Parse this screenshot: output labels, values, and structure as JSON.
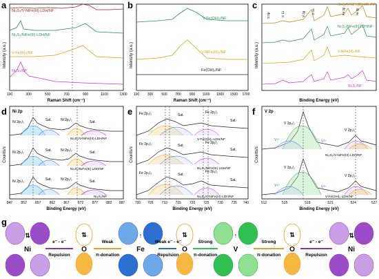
{
  "figure": {
    "panels": {
      "a": {
        "letter": "a",
        "xlabel": "Raman Shift (cm⁻¹)",
        "ylabel": "Intensity (a.u.)",
        "xticks": [
          "100",
          "300",
          "500",
          "700",
          "900",
          "1100",
          "1300"
        ],
        "labels": [
          "Ni₃S₂/V-NiFe(III) LDH/NF",
          "Ni₃S₂/NiFe(III) LDH/NF",
          "V-Fe(III)₂/NF",
          "Ni₃S₂/NF"
        ]
      },
      "b": {
        "letter": "b",
        "xlabel": "Raman Shift (cm⁻¹)",
        "ylabel": "Intensity (a.u.)",
        "xticks": [
          "100",
          "300",
          "500",
          "700",
          "900",
          "1100",
          "1300",
          "1500",
          "1700"
        ],
        "labels": [
          "V-Fe(OH)₂/NF",
          "V-NiFe(III)₂/NF",
          "Fe(OH)₂/NF"
        ]
      },
      "c": {
        "letter": "c",
        "xlabel": "Binding Energy (eV)",
        "ylabel": "Intensity (a.u.)",
        "labels": [
          "Ni₃S₂/V-NiFe(III) LDH/NF",
          "Ni₃S₂/NiFe(III) LDH/NF",
          "V-NiFe(III)₂/NF",
          "Ni₃S₂/NF"
        ],
        "peaks": [
          "S 2p",
          "C 1s",
          "V 2p",
          "O 1s",
          "Fe 2p",
          "Ni 2p"
        ]
      },
      "d": {
        "letter": "d",
        "title": "Ni 2p",
        "xlabel": "Binding Energy (eV)",
        "ylabel": "Counts/s",
        "xticks": [
          "847",
          "852",
          "857",
          "862",
          "867",
          "872",
          "877",
          "882",
          "887"
        ],
        "labels": [
          "Ni₃S₂/V-NiFe(III) LDH/NF",
          "Ni₃S₂/NiFe(III) LDH/NF",
          "Ni₃S₂/NF"
        ],
        "annot": [
          "Ni 2p₃/₂",
          "Sat.",
          "Ni 2p₁/₂",
          "Sat."
        ]
      },
      "e": {
        "letter": "e",
        "xlabel": "Binding Energy (eV)",
        "ylabel": "Counts/s",
        "xticks": [
          "700",
          "705",
          "710",
          "715",
          "720",
          "725",
          "730",
          "735",
          "740"
        ],
        "labels": [
          "V-Fe(OH)₂ LDH/NF",
          "Ni₃S₂/NiFe(III) LDH/NF",
          "Ni₃S₂/V-NiFe(III) LDH/NF"
        ],
        "annot": [
          "Fe 2p₃/₂",
          "Sat.",
          "Fe 2p₁/₂",
          "Sat."
        ]
      },
      "f": {
        "letter": "f",
        "title": "V 2p",
        "xlabel": "Binding Energy (eV)",
        "ylabel": "Counts/s",
        "xticks": [
          "512",
          "515",
          "518",
          "521",
          "524",
          "527"
        ],
        "labels": [
          "Ni₃S₂/V-NiFe(III) LDH/NF",
          "V-Fe(OH)₂ LDH/NF"
        ],
        "annot": [
          "V 2p₃/₂",
          "V 2p₁/₂",
          "V⁴⁺",
          "V³⁺"
        ]
      }
    },
    "scheme": {
      "letter": "g",
      "atoms": [
        "Ni",
        "O",
        "Fe",
        "O",
        "V",
        "O",
        "Ni"
      ],
      "arrow_labels": [
        {
          "top": "e⁻ - e⁻",
          "bottom": "Repulsion"
        },
        {
          "top": "Weak",
          "bottom": "π-donation"
        },
        {
          "top": "Weak e⁻ - e⁻",
          "bottom": "Repulsion"
        },
        {
          "top": "Strong",
          "bottom": "π-donation"
        },
        {
          "top": "Strong",
          "bottom": "π-donation"
        },
        {
          "top": "e⁻ - e⁻",
          "bottom": "Repulsion"
        }
      ]
    }
  },
  "chart_data": [
    {
      "type": "line",
      "panel": "a",
      "xlabel": "Raman Shift (cm⁻¹)",
      "ylabel": "Intensity (a.u.)",
      "xlim": [
        100,
        1300
      ],
      "series": [
        {
          "name": "Ni₃S₂/V-NiFe(III) LDH/NF",
          "peaks_x": [
            320,
            830
          ]
        },
        {
          "name": "Ni₃S₂/NiFe(III) LDH/NF",
          "peaks_x": [
            340,
            830
          ]
        },
        {
          "name": "V-Fe(III)₂/NF",
          "peaks_x": [
            830
          ]
        },
        {
          "name": "Ni₃S₂/NF",
          "peaks_x": [
            300,
            350
          ]
        }
      ]
    },
    {
      "type": "line",
      "panel": "b",
      "xlabel": "Raman Shift (cm⁻¹)",
      "ylabel": "Intensity (a.u.)",
      "xlim": [
        100,
        1700
      ],
      "series": [
        {
          "name": "V-Fe(OH)₂/NF",
          "peaks_x": [
            800
          ]
        },
        {
          "name": "V-NiFe(III)₂/NF",
          "peaks_x": [
            830
          ]
        },
        {
          "name": "Fe(OH)₂/NF",
          "peaks_x": []
        }
      ]
    },
    {
      "type": "line",
      "panel": "c",
      "xlabel": "Binding Energy (eV)",
      "ylabel": "Intensity (a.u.)",
      "series": [
        {
          "name": "Ni₃S₂/V-NiFe(III) LDH/NF"
        },
        {
          "name": "Ni₃S₂/NiFe(III) LDH/NF"
        },
        {
          "name": "V-NiFe(III)₂/NF"
        },
        {
          "name": "Ni₃S₂/NF"
        }
      ]
    },
    {
      "type": "line",
      "panel": "d",
      "title": "Ni 2p",
      "xlabel": "Binding Energy (eV)",
      "ylabel": "Counts/s",
      "xlim": [
        847,
        887
      ],
      "series": [
        {
          "name": "Ni₃S₂/V-NiFe(III) LDH/NF",
          "peaks_x": [
            855.8,
            861.5,
            873.5,
            879.5
          ]
        },
        {
          "name": "Ni₃S₂/NiFe(III) LDH/NF",
          "peaks_x": [
            855.7,
            861.5,
            873.3,
            879.5
          ]
        },
        {
          "name": "Ni₃S₂/NF",
          "peaks_x": [
            855.5,
            861.5,
            873.2,
            879.5
          ]
        }
      ]
    },
    {
      "type": "line",
      "panel": "e",
      "xlabel": "Binding Energy (eV)",
      "ylabel": "Counts/s",
      "xlim": [
        700,
        740
      ],
      "series": [
        {
          "name": "V-Fe(OH)₂ LDH/NF",
          "peaks_x": [
            711.5,
            718,
            725,
            732
          ]
        },
        {
          "name": "Ni₃S₂/NiFe(III) LDH/NF",
          "peaks_x": [
            712.2,
            718,
            725.5,
            732
          ]
        },
        {
          "name": "Ni₃S₂/V-NiFe(III) LDH/NF",
          "peaks_x": [
            712.6,
            718,
            725.8,
            732
          ]
        }
      ]
    },
    {
      "type": "line",
      "panel": "f",
      "title": "V 2p",
      "xlabel": "Binding Energy (eV)",
      "ylabel": "Counts/s",
      "xlim": [
        512,
        527
      ],
      "series": [
        {
          "name": "Ni₃S₂/V-NiFe(III) LDH/NF",
          "peaks_x": [
            516.9,
            524.4
          ]
        },
        {
          "name": "V-Fe(OH)₂ LDH/NF",
          "peaks_x": [
            516.6,
            524.1
          ]
        }
      ]
    }
  ]
}
